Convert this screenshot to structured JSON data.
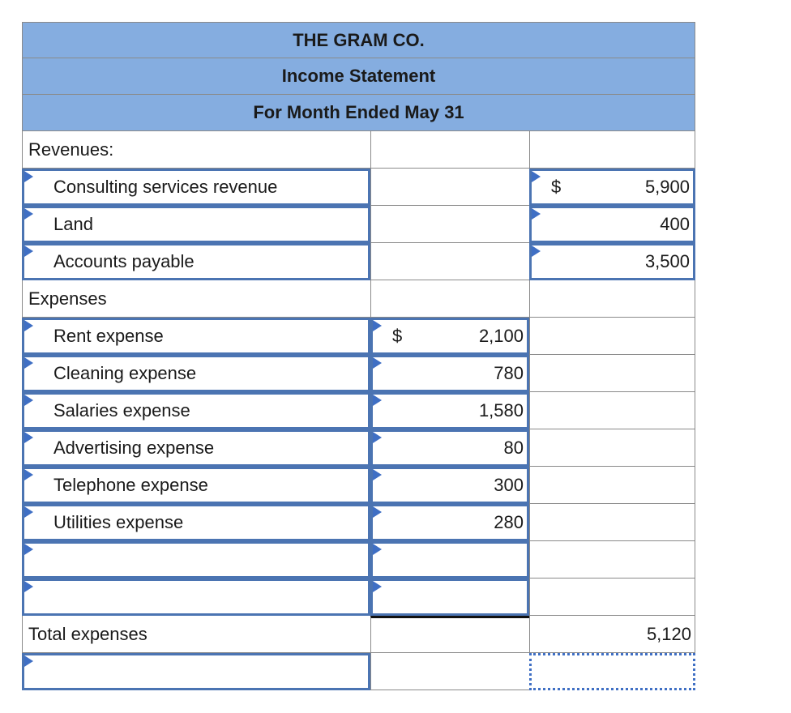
{
  "header": {
    "company": "THE GRAM CO.",
    "statement": "Income Statement",
    "period": "For Month Ended May 31"
  },
  "revenues": {
    "heading": "Revenues:",
    "items": [
      {
        "label": "Consulting services revenue",
        "currency": "$",
        "amount": "5,900"
      },
      {
        "label": "Land",
        "currency": "",
        "amount": "400"
      },
      {
        "label": "Accounts payable",
        "currency": "",
        "amount": "3,500"
      }
    ]
  },
  "expenses": {
    "heading": "Expenses",
    "items": [
      {
        "label": "Rent expense",
        "currency": "$",
        "amount": "2,100"
      },
      {
        "label": "Cleaning expense",
        "currency": "",
        "amount": "780"
      },
      {
        "label": "Salaries expense",
        "currency": "",
        "amount": "1,580"
      },
      {
        "label": "Advertising expense",
        "currency": "",
        "amount": "80"
      },
      {
        "label": "Telephone expense",
        "currency": "",
        "amount": "300"
      },
      {
        "label": "Utilities expense",
        "currency": "",
        "amount": "280"
      },
      {
        "label": "",
        "currency": "",
        "amount": ""
      },
      {
        "label": "",
        "currency": "",
        "amount": ""
      }
    ],
    "total_label": "Total expenses",
    "total_amount": "5,120"
  },
  "final_row": {
    "label": "",
    "amount": ""
  }
}
